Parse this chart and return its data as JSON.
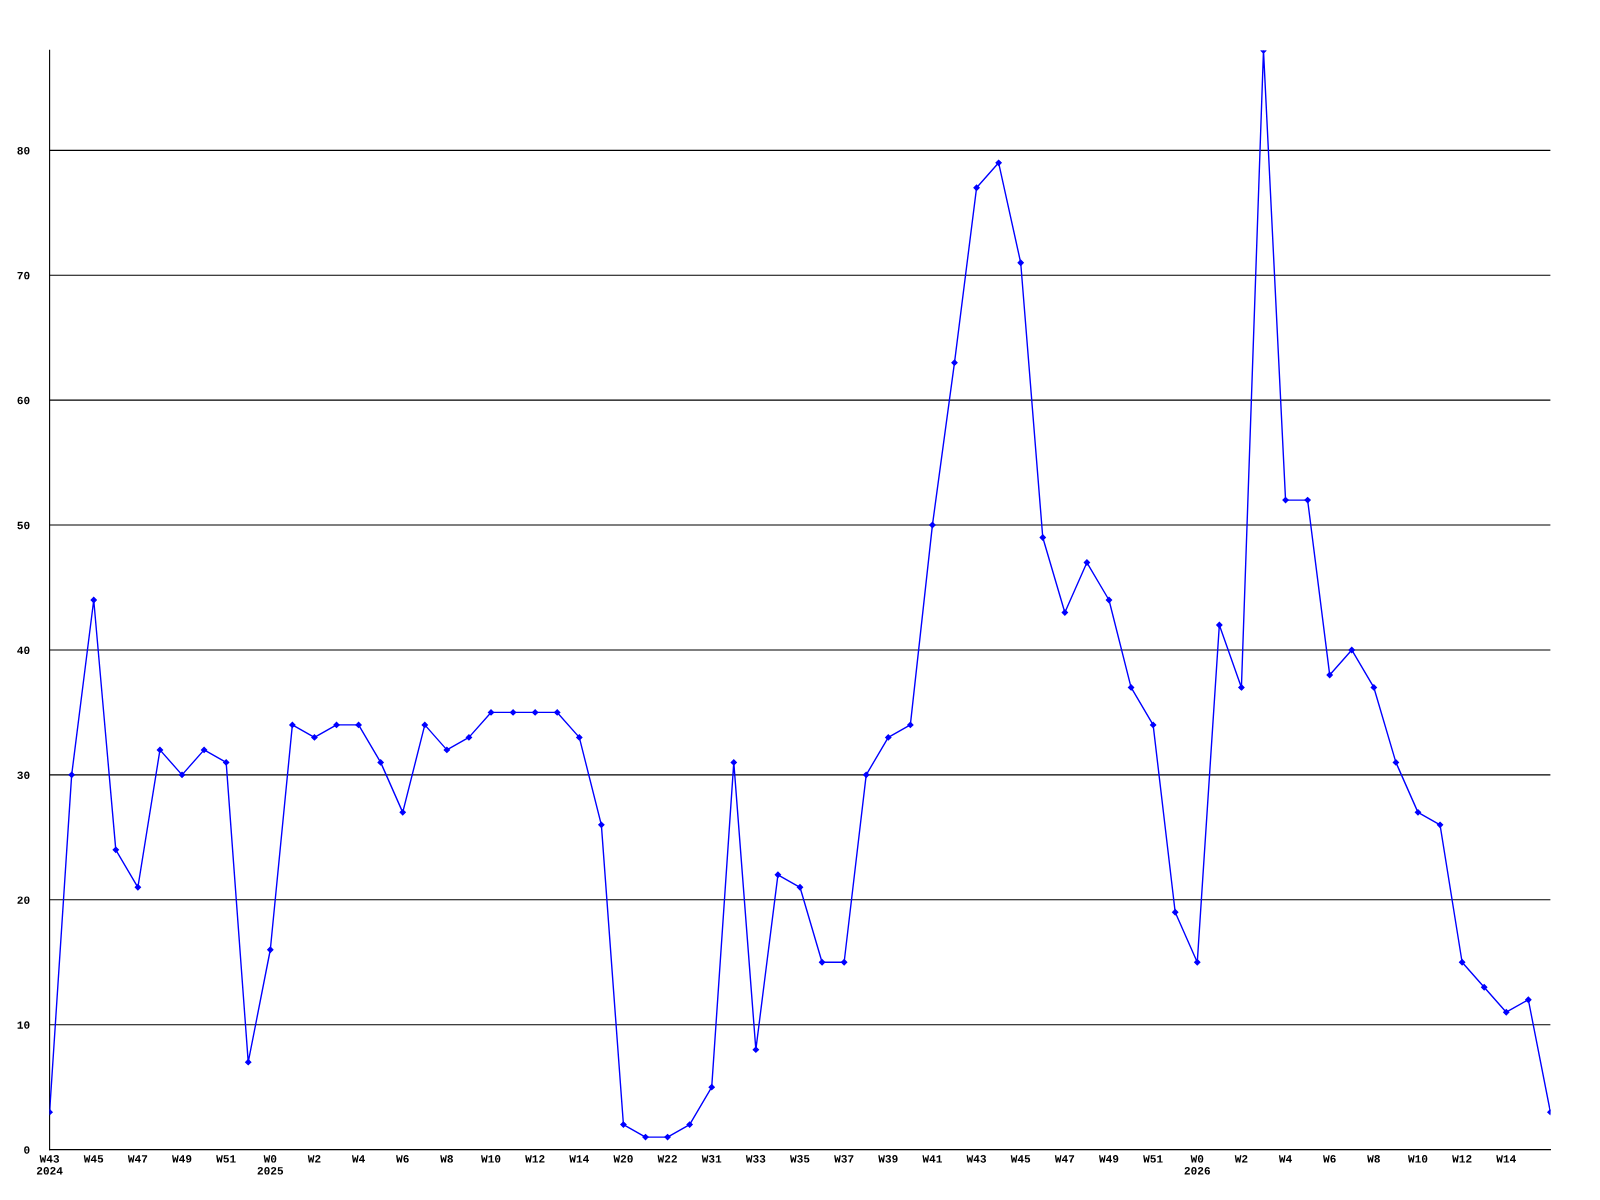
{
  "chart_data": {
    "type": "line",
    "categories": [
      "W43\n2024",
      null,
      "W45",
      null,
      "W47",
      null,
      "W49",
      null,
      "W51",
      null,
      "W0\n2025",
      null,
      "W2",
      null,
      "W4",
      null,
      "W6",
      null,
      "W8",
      null,
      "W10",
      null,
      "W12",
      null,
      "W14",
      null,
      "W20",
      null,
      "W22",
      null,
      "W31",
      null,
      "W33",
      null,
      "W35",
      null,
      "W37",
      null,
      "W39",
      null,
      "W41",
      null,
      "W43",
      null,
      "W45",
      null,
      "W47",
      null,
      "W49",
      null,
      "W51",
      null,
      "W0\n2026",
      null,
      "W2",
      null,
      "W4",
      null,
      "W6",
      null,
      "W8",
      null,
      "W10",
      null,
      "W12",
      null,
      "W14",
      null,
      null
    ],
    "series": [
      {
        "color": "#0000ff",
        "values": [
          3,
          30,
          44,
          24,
          21,
          32,
          30,
          32,
          31,
          7,
          16,
          34,
          33,
          34,
          34,
          31,
          27,
          34,
          32,
          33,
          35,
          35,
          35,
          35,
          33,
          26,
          2,
          1,
          1,
          2,
          5,
          31,
          8,
          22,
          21,
          15,
          15,
          30,
          33,
          34,
          50,
          63,
          77,
          79,
          71,
          49,
          43,
          47,
          44,
          37,
          34,
          19,
          15,
          42,
          37,
          88,
          52,
          52,
          38,
          40,
          37,
          31,
          27,
          26,
          15,
          13,
          11,
          12,
          3
        ]
      }
    ],
    "ylim": [
      0,
      88
    ],
    "yticks": [
      0,
      10,
      20,
      30,
      40,
      50,
      60,
      70,
      80
    ],
    "grid": "y",
    "marker": "diamond",
    "line_style": "solid",
    "legend": false
  }
}
